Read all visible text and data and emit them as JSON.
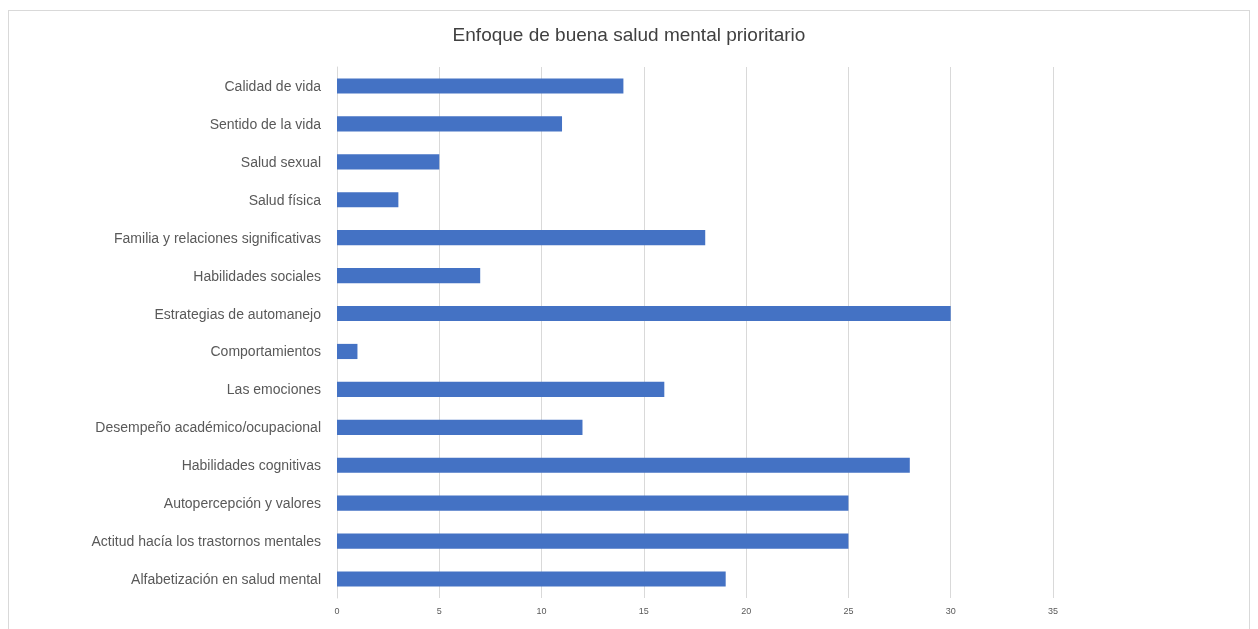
{
  "chart_data": {
    "type": "bar",
    "orientation": "horizontal",
    "title": "Enfoque de buena salud mental prioritario",
    "categories": [
      "Calidad de vida",
      "Sentido de la vida",
      "Salud sexual",
      "Salud física",
      "Familia y relaciones significativas",
      "Habilidades sociales",
      "Estrategias de automanejo",
      "Comportamientos",
      "Las emociones",
      "Desempeño académico/ocupacional",
      "Habilidades cognitivas",
      "Autopercepción y valores",
      "Actitud hacía los trastornos mentales",
      "Alfabetización en salud mental"
    ],
    "values": [
      14,
      11,
      5,
      3,
      18,
      7,
      30,
      1,
      16,
      12,
      28,
      25,
      25,
      19
    ],
    "color": "#4472c4",
    "xlim": [
      0,
      35
    ],
    "xticks": [
      0,
      5,
      10,
      15,
      20,
      25,
      30,
      35
    ],
    "grid": "x"
  }
}
